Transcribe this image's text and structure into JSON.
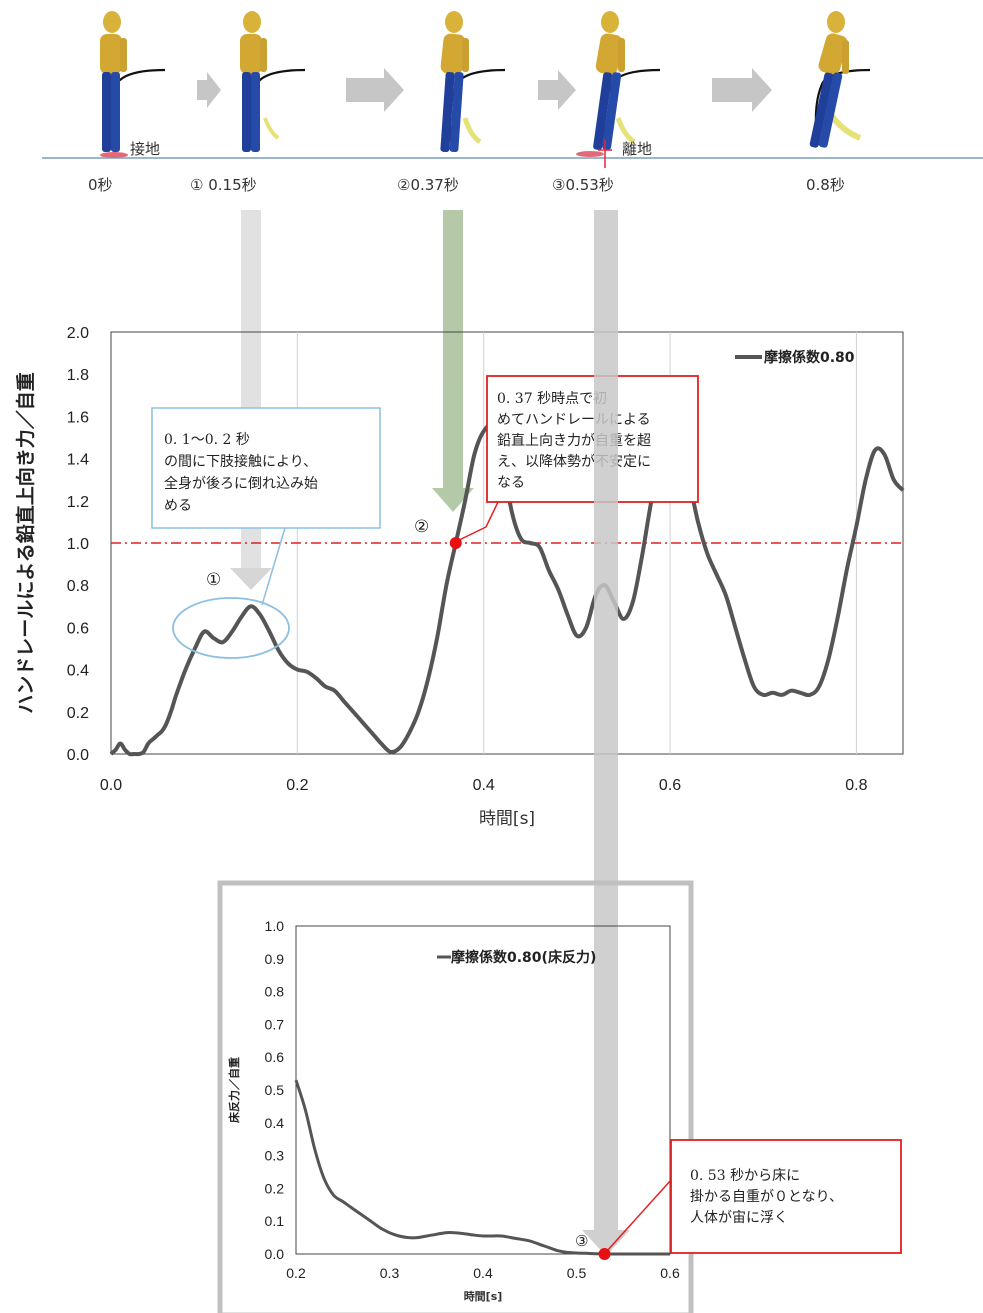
{
  "stages": {
    "labels": [
      "0秒",
      "① 0.15秒",
      "②0.37秒",
      "③0.53秒",
      "0.8秒"
    ],
    "contact_label": "接地",
    "release_label": "離地"
  },
  "chart_data": [
    {
      "type": "line",
      "ylabel": "ハンドレールによる鉛直上向き力／自重",
      "xlabel": "時間[s]",
      "xlim": [
        0,
        0.85
      ],
      "ylim": [
        0,
        2.0
      ],
      "xticks": [
        "0.0",
        "0.2",
        "0.4",
        "0.6",
        "0.8"
      ],
      "yticks": [
        "0.0",
        "0.2",
        "0.4",
        "0.6",
        "0.8",
        "1.0",
        "1.2",
        "1.4",
        "1.6",
        "1.8",
        "2.0"
      ],
      "legend": "摩擦係数0.80",
      "legend_position": "top-right",
      "grid": "vertical",
      "reference_line": 1.0,
      "series": [
        {
          "name": "摩擦係数0.80",
          "color": "#555555",
          "x": [
            0,
            0.005,
            0.01,
            0.015,
            0.02,
            0.025,
            0.03,
            0.035,
            0.04,
            0.045,
            0.05,
            0.055,
            0.06,
            0.065,
            0.07,
            0.08,
            0.09,
            0.1,
            0.11,
            0.12,
            0.13,
            0.14,
            0.15,
            0.16,
            0.17,
            0.18,
            0.19,
            0.2,
            0.21,
            0.22,
            0.23,
            0.24,
            0.25,
            0.26,
            0.27,
            0.28,
            0.29,
            0.3,
            0.31,
            0.32,
            0.33,
            0.34,
            0.35,
            0.36,
            0.37,
            0.38,
            0.39,
            0.4,
            0.41,
            0.42,
            0.43,
            0.44,
            0.45,
            0.46,
            0.47,
            0.48,
            0.49,
            0.5,
            0.51,
            0.52,
            0.53,
            0.54,
            0.55,
            0.56,
            0.57,
            0.58,
            0.59,
            0.6,
            0.61,
            0.62,
            0.63,
            0.64,
            0.65,
            0.66,
            0.67,
            0.68,
            0.69,
            0.7,
            0.71,
            0.72,
            0.73,
            0.74,
            0.75,
            0.76,
            0.77,
            0.78,
            0.79,
            0.8,
            0.81,
            0.82,
            0.83,
            0.84,
            0.85
          ],
          "y": [
            0.0,
            0.02,
            0.05,
            0.02,
            0.0,
            0.0,
            0.0,
            0.01,
            0.05,
            0.07,
            0.09,
            0.11,
            0.15,
            0.21,
            0.28,
            0.4,
            0.5,
            0.58,
            0.55,
            0.53,
            0.58,
            0.65,
            0.7,
            0.66,
            0.58,
            0.49,
            0.43,
            0.4,
            0.39,
            0.36,
            0.32,
            0.3,
            0.25,
            0.2,
            0.15,
            0.1,
            0.05,
            0.01,
            0.03,
            0.1,
            0.2,
            0.35,
            0.55,
            0.8,
            1.0,
            1.2,
            1.42,
            1.53,
            1.55,
            1.4,
            1.15,
            1.02,
            1.0,
            0.98,
            0.87,
            0.78,
            0.66,
            0.56,
            0.6,
            0.75,
            0.8,
            0.72,
            0.64,
            0.72,
            0.94,
            1.2,
            1.4,
            1.47,
            1.44,
            1.3,
            1.1,
            0.95,
            0.85,
            0.75,
            0.6,
            0.45,
            0.32,
            0.28,
            0.29,
            0.28,
            0.3,
            0.29,
            0.28,
            0.32,
            0.45,
            0.65,
            0.88,
            1.08,
            1.3,
            1.44,
            1.42,
            1.3,
            1.25
          ]
        }
      ],
      "markers": [
        {
          "label": "①",
          "x": 0.15,
          "y": 0.7
        },
        {
          "label": "②",
          "x": 0.37,
          "y": 1.0
        }
      ],
      "annotations": [
        "0. 1～0. 2 秒の間に下肢接触により、全身が後ろに倒れ込み始める",
        "0. 37 秒時点で初めてハンドレールによる鉛直上向き力が自重を超え、以降体勢が不安定になる"
      ]
    },
    {
      "type": "line",
      "ylabel": "床反力／自重",
      "xlabel": "時間[s]",
      "xlim": [
        0.2,
        0.6
      ],
      "ylim": [
        0,
        1.0
      ],
      "xticks": [
        "0.2",
        "0.3",
        "0.4",
        "0.5",
        "0.6"
      ],
      "yticks": [
        "0.0",
        "0.1",
        "0.2",
        "0.3",
        "0.4",
        "0.5",
        "0.6",
        "0.7",
        "0.8",
        "0.9",
        "1.0"
      ],
      "legend": "摩擦係数0.80(床反力)",
      "legend_position": "top-right",
      "series": [
        {
          "name": "摩擦係数0.80(床反力)",
          "color": "#555555",
          "x": [
            0.2,
            0.21,
            0.22,
            0.23,
            0.24,
            0.25,
            0.26,
            0.27,
            0.28,
            0.29,
            0.3,
            0.31,
            0.32,
            0.33,
            0.34,
            0.35,
            0.36,
            0.37,
            0.38,
            0.39,
            0.4,
            0.41,
            0.42,
            0.43,
            0.44,
            0.45,
            0.46,
            0.47,
            0.48,
            0.49,
            0.5,
            0.51,
            0.52,
            0.53,
            0.55,
            0.6
          ],
          "y": [
            0.53,
            0.44,
            0.32,
            0.23,
            0.18,
            0.16,
            0.14,
            0.12,
            0.1,
            0.08,
            0.065,
            0.055,
            0.05,
            0.05,
            0.055,
            0.06,
            0.065,
            0.065,
            0.062,
            0.058,
            0.055,
            0.055,
            0.055,
            0.05,
            0.045,
            0.04,
            0.03,
            0.02,
            0.01,
            0.005,
            0.003,
            0.002,
            0.001,
            0,
            0,
            0
          ]
        }
      ],
      "markers": [
        {
          "label": "③",
          "x": 0.53,
          "y": 0.0
        }
      ],
      "annotations": [
        "0. 53 秒から床に掛かる自重が０となり、人体が宙に浮く"
      ]
    }
  ]
}
